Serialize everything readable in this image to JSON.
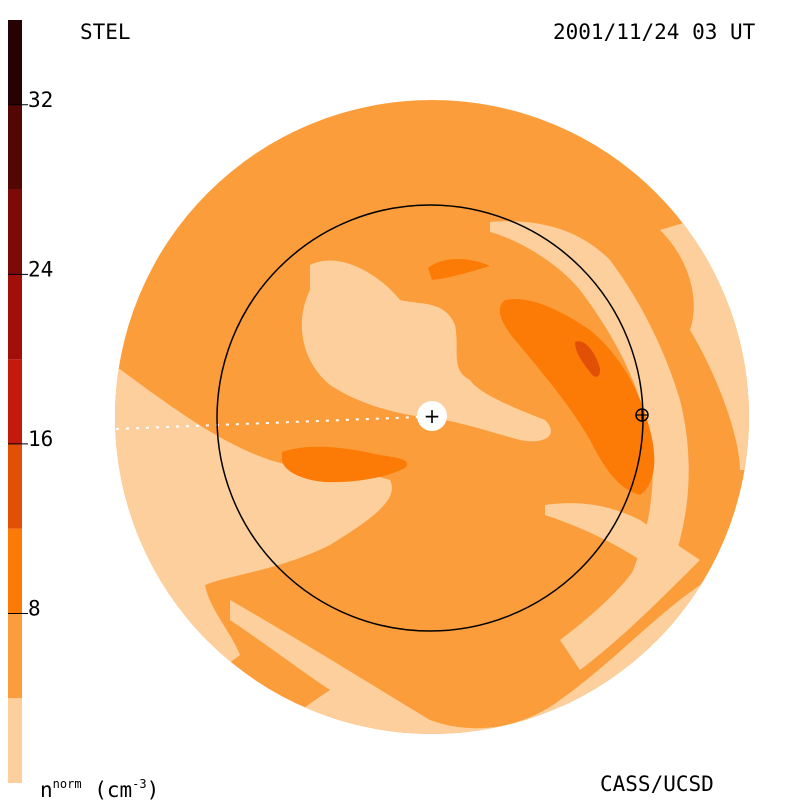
{
  "header": {
    "source_label": "STEL",
    "timestamp": "2001/11/24 03 UT"
  },
  "footer": {
    "quantity_base": "n",
    "quantity_sup": "norm",
    "unit_open": "(cm",
    "unit_sup": "-3",
    "unit_close": ")",
    "credit": "CASS/UCSD"
  },
  "chart_data": {
    "type": "heatmap",
    "title": "",
    "colorbar": {
      "range": [
        0,
        36
      ],
      "tick_labels": [
        "32",
        "24",
        "16",
        "8"
      ],
      "tick_values": [
        32,
        24,
        16,
        8
      ],
      "bands": [
        {
          "from": 0,
          "to": 4,
          "color": "#fccf9c"
        },
        {
          "from": 4,
          "to": 8,
          "color": "#fb9d3a"
        },
        {
          "from": 8,
          "to": 12,
          "color": "#fc7b07"
        },
        {
          "from": 12,
          "to": 16,
          "color": "#e25008"
        },
        {
          "from": 16,
          "to": 20,
          "color": "#c31b0b"
        },
        {
          "from": 20,
          "to": 24,
          "color": "#a11008"
        },
        {
          "from": 24,
          "to": 28,
          "color": "#7d0a06"
        },
        {
          "from": 28,
          "to": 32,
          "color": "#520705"
        },
        {
          "from": 32,
          "to": 36,
          "color": "#260202"
        }
      ]
    },
    "markers": {
      "sun": "+",
      "earth": "⊕",
      "earth_orbit": true
    },
    "background_level_color": "#fb9d3a"
  }
}
